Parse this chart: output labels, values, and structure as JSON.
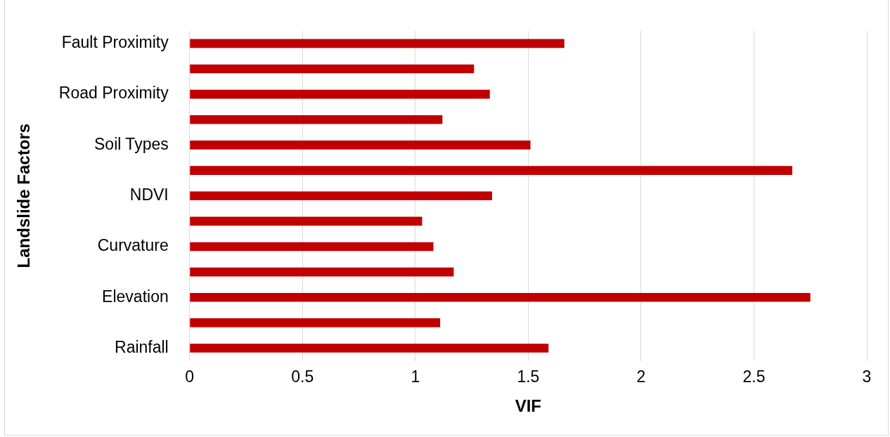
{
  "chart_data": {
    "type": "bar",
    "orientation": "horizontal",
    "xlabel": "VIF",
    "ylabel": "Landslide Factors",
    "categories": [
      "Fault Proximity",
      null,
      "Road Proximity",
      null,
      "Soil Types",
      null,
      "NDVI",
      null,
      "Curvature",
      null,
      "Elevation",
      null,
      "Rainfall"
    ],
    "values": [
      1.66,
      1.26,
      1.33,
      1.12,
      1.51,
      2.67,
      1.34,
      1.03,
      1.08,
      1.17,
      2.75,
      1.11,
      1.59
    ],
    "color": "#c00000",
    "xlim": [
      0,
      3
    ],
    "xticks": [
      0,
      0.5,
      1,
      1.5,
      2,
      2.5,
      3
    ],
    "grid": "x",
    "legend": false
  }
}
